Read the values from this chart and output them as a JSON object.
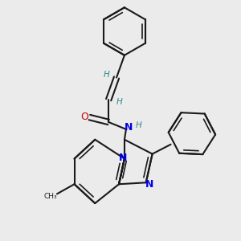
{
  "bg_color": "#ebebeb",
  "bond_color": "#1a1a1a",
  "nitrogen_color": "#0000ee",
  "oxygen_color": "#cc0000",
  "h_color": "#2e8b8b",
  "lw": 1.5,
  "lw_inner": 1.2,
  "figsize": [
    3.0,
    3.0
  ],
  "dpi": 100,
  "xlim": [
    0.0,
    3.0
  ],
  "ylim": [
    0.0,
    3.0
  ]
}
